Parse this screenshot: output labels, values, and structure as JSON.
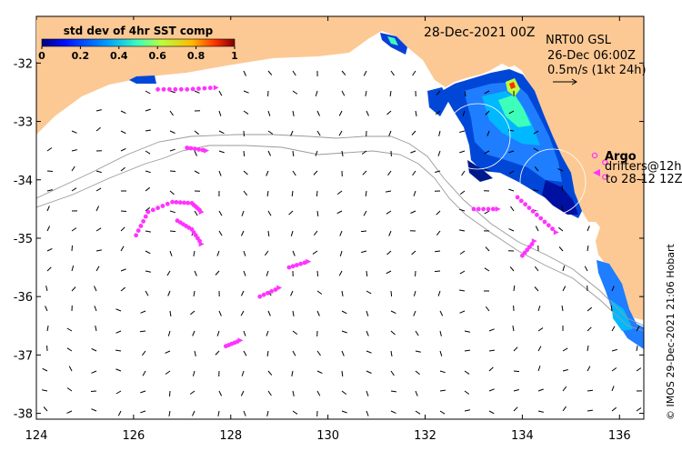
{
  "colorbar": {
    "title": "std dev of 4hr SST comp",
    "tick_labels": [
      "0",
      "0.2",
      "0.4",
      "0.6",
      "0.8",
      "1"
    ],
    "colors": [
      "#00007f",
      "#0010ff",
      "#00a4ff",
      "#3dffba",
      "#baff3d",
      "#ffb900",
      "#ff3000",
      "#7f0000"
    ]
  },
  "date_label": "28-Dec-2021 00Z",
  "legend": {
    "line1": "NRT00 GSL",
    "line2": "26-Dec 06:00Z",
    "line3": "0.5m/s (1kt 24h)"
  },
  "argo": {
    "label": "Argo",
    "drifters_line1": "drifters@12h",
    "drifters_line2": "to 28-12 12Z"
  },
  "credit": "© IMOS 29-Dec-2021 21:06 Hobart",
  "axes": {
    "x_ticks": [
      "124",
      "126",
      "128",
      "130",
      "132",
      "134",
      "136"
    ],
    "y_ticks": [
      "-32",
      "-33",
      "-34",
      "-35",
      "-36",
      "-37",
      "-38"
    ],
    "x_range": [
      124,
      136.5
    ],
    "y_range": [
      -38.1,
      -31.2
    ]
  },
  "colors": {
    "land": "#fcc994",
    "arrow": "#000000",
    "drifter": "#ff33ff",
    "contour": "#9a9a9a"
  },
  "chart_data": {
    "type": "map",
    "title": "std dev of 4hr SST comp",
    "drifter_tracks": [
      {
        "name": "drifter-north",
        "points": [
          [
            126.5,
            -32.45
          ],
          [
            127.1,
            -32.45
          ],
          [
            127.7,
            -32.42
          ]
        ]
      },
      {
        "name": "drifter-eddy-arc",
        "points": [
          [
            126.05,
            -34.95
          ],
          [
            126.3,
            -34.55
          ],
          [
            126.8,
            -34.38
          ],
          [
            127.2,
            -34.4
          ],
          [
            127.4,
            -34.55
          ]
        ]
      },
      {
        "name": "drifter-eddy-inner",
        "points": [
          [
            126.9,
            -34.7
          ],
          [
            127.2,
            -34.85
          ],
          [
            127.4,
            -35.1
          ]
        ]
      },
      {
        "name": "drifter-small",
        "points": [
          [
            127.1,
            -33.45
          ],
          [
            127.5,
            -33.5
          ]
        ]
      },
      {
        "name": "drifter-mid",
        "points": [
          [
            129.2,
            -35.5
          ],
          [
            129.6,
            -35.4
          ]
        ]
      },
      {
        "name": "drifter-south",
        "points": [
          [
            128.6,
            -36.0
          ],
          [
            129.0,
            -35.85
          ]
        ]
      },
      {
        "name": "drifter-southwest",
        "points": [
          [
            127.9,
            -36.85
          ],
          [
            128.2,
            -36.75
          ]
        ]
      },
      {
        "name": "drifter-east",
        "points": [
          [
            133.0,
            -34.5
          ],
          [
            133.5,
            -34.5
          ]
        ]
      },
      {
        "name": "drifter-coast",
        "points": [
          [
            133.9,
            -34.3
          ],
          [
            134.3,
            -34.6
          ],
          [
            134.7,
            -34.9
          ]
        ]
      },
      {
        "name": "drifter-southeast",
        "points": [
          [
            134.0,
            -35.3
          ],
          [
            134.25,
            -35.05
          ]
        ]
      }
    ],
    "argo_floats": [
      [
        135.7,
        -33.7
      ],
      [
        135.7,
        -33.95
      ]
    ]
  }
}
